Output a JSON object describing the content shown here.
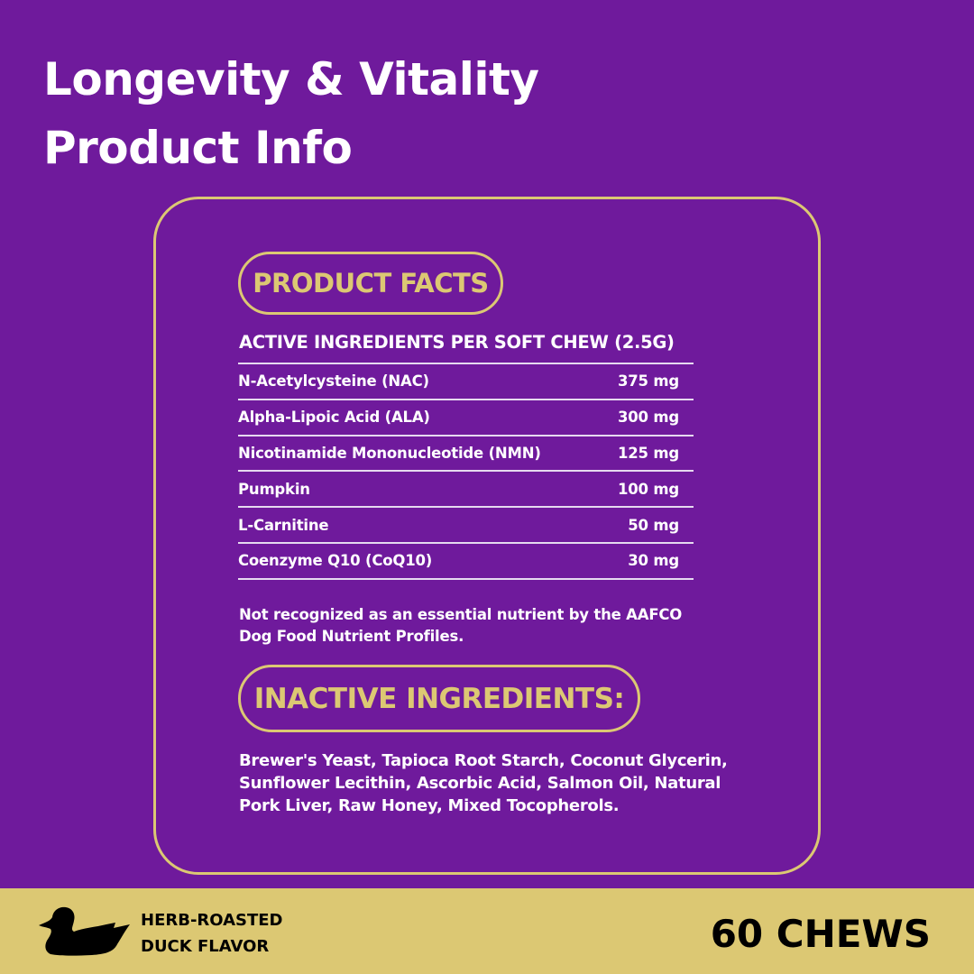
{
  "title": {
    "line1": "Longevity & Vitality",
    "line2": "Product Info"
  },
  "product_facts": {
    "label": "PRODUCT FACTS",
    "header": "ACTIVE INGREDIENTS PER SOFT CHEW (2.5G)",
    "rows": [
      {
        "name": "N-Acetylcysteine (NAC)",
        "amount": "375 mg"
      },
      {
        "name": "Alpha-Lipoic Acid (ALA)",
        "amount": "300 mg"
      },
      {
        "name": "Nicotinamide Mononucleotide (NMN)",
        "amount": "125 mg"
      },
      {
        "name": "Pumpkin",
        "amount": "100 mg"
      },
      {
        "name": "L-Carnitine",
        "amount": "50 mg"
      },
      {
        "name": "Coenzyme Q10 (CoQ10)",
        "amount": "30 mg"
      }
    ],
    "note": "Not recognized as an essential nutrient by the AAFCO Dog Food Nutrient Profiles."
  },
  "inactive": {
    "label": "INACTIVE INGREDIENTS:",
    "text": "Brewer's Yeast, Tapioca Root Starch, Coconut Glycerin, Sunflower Lecithin, Ascorbic Acid, Salmon Oil, Natural Pork Liver, Raw Honey, Mixed Tocopherols."
  },
  "footer": {
    "icon": "duck-icon",
    "flavor_line1": "HERB-ROASTED",
    "flavor_line2": "DUCK FLAVOR",
    "count": "60 CHEWS"
  },
  "colors": {
    "background": "#6f1a9c",
    "accent": "#dcc873"
  }
}
